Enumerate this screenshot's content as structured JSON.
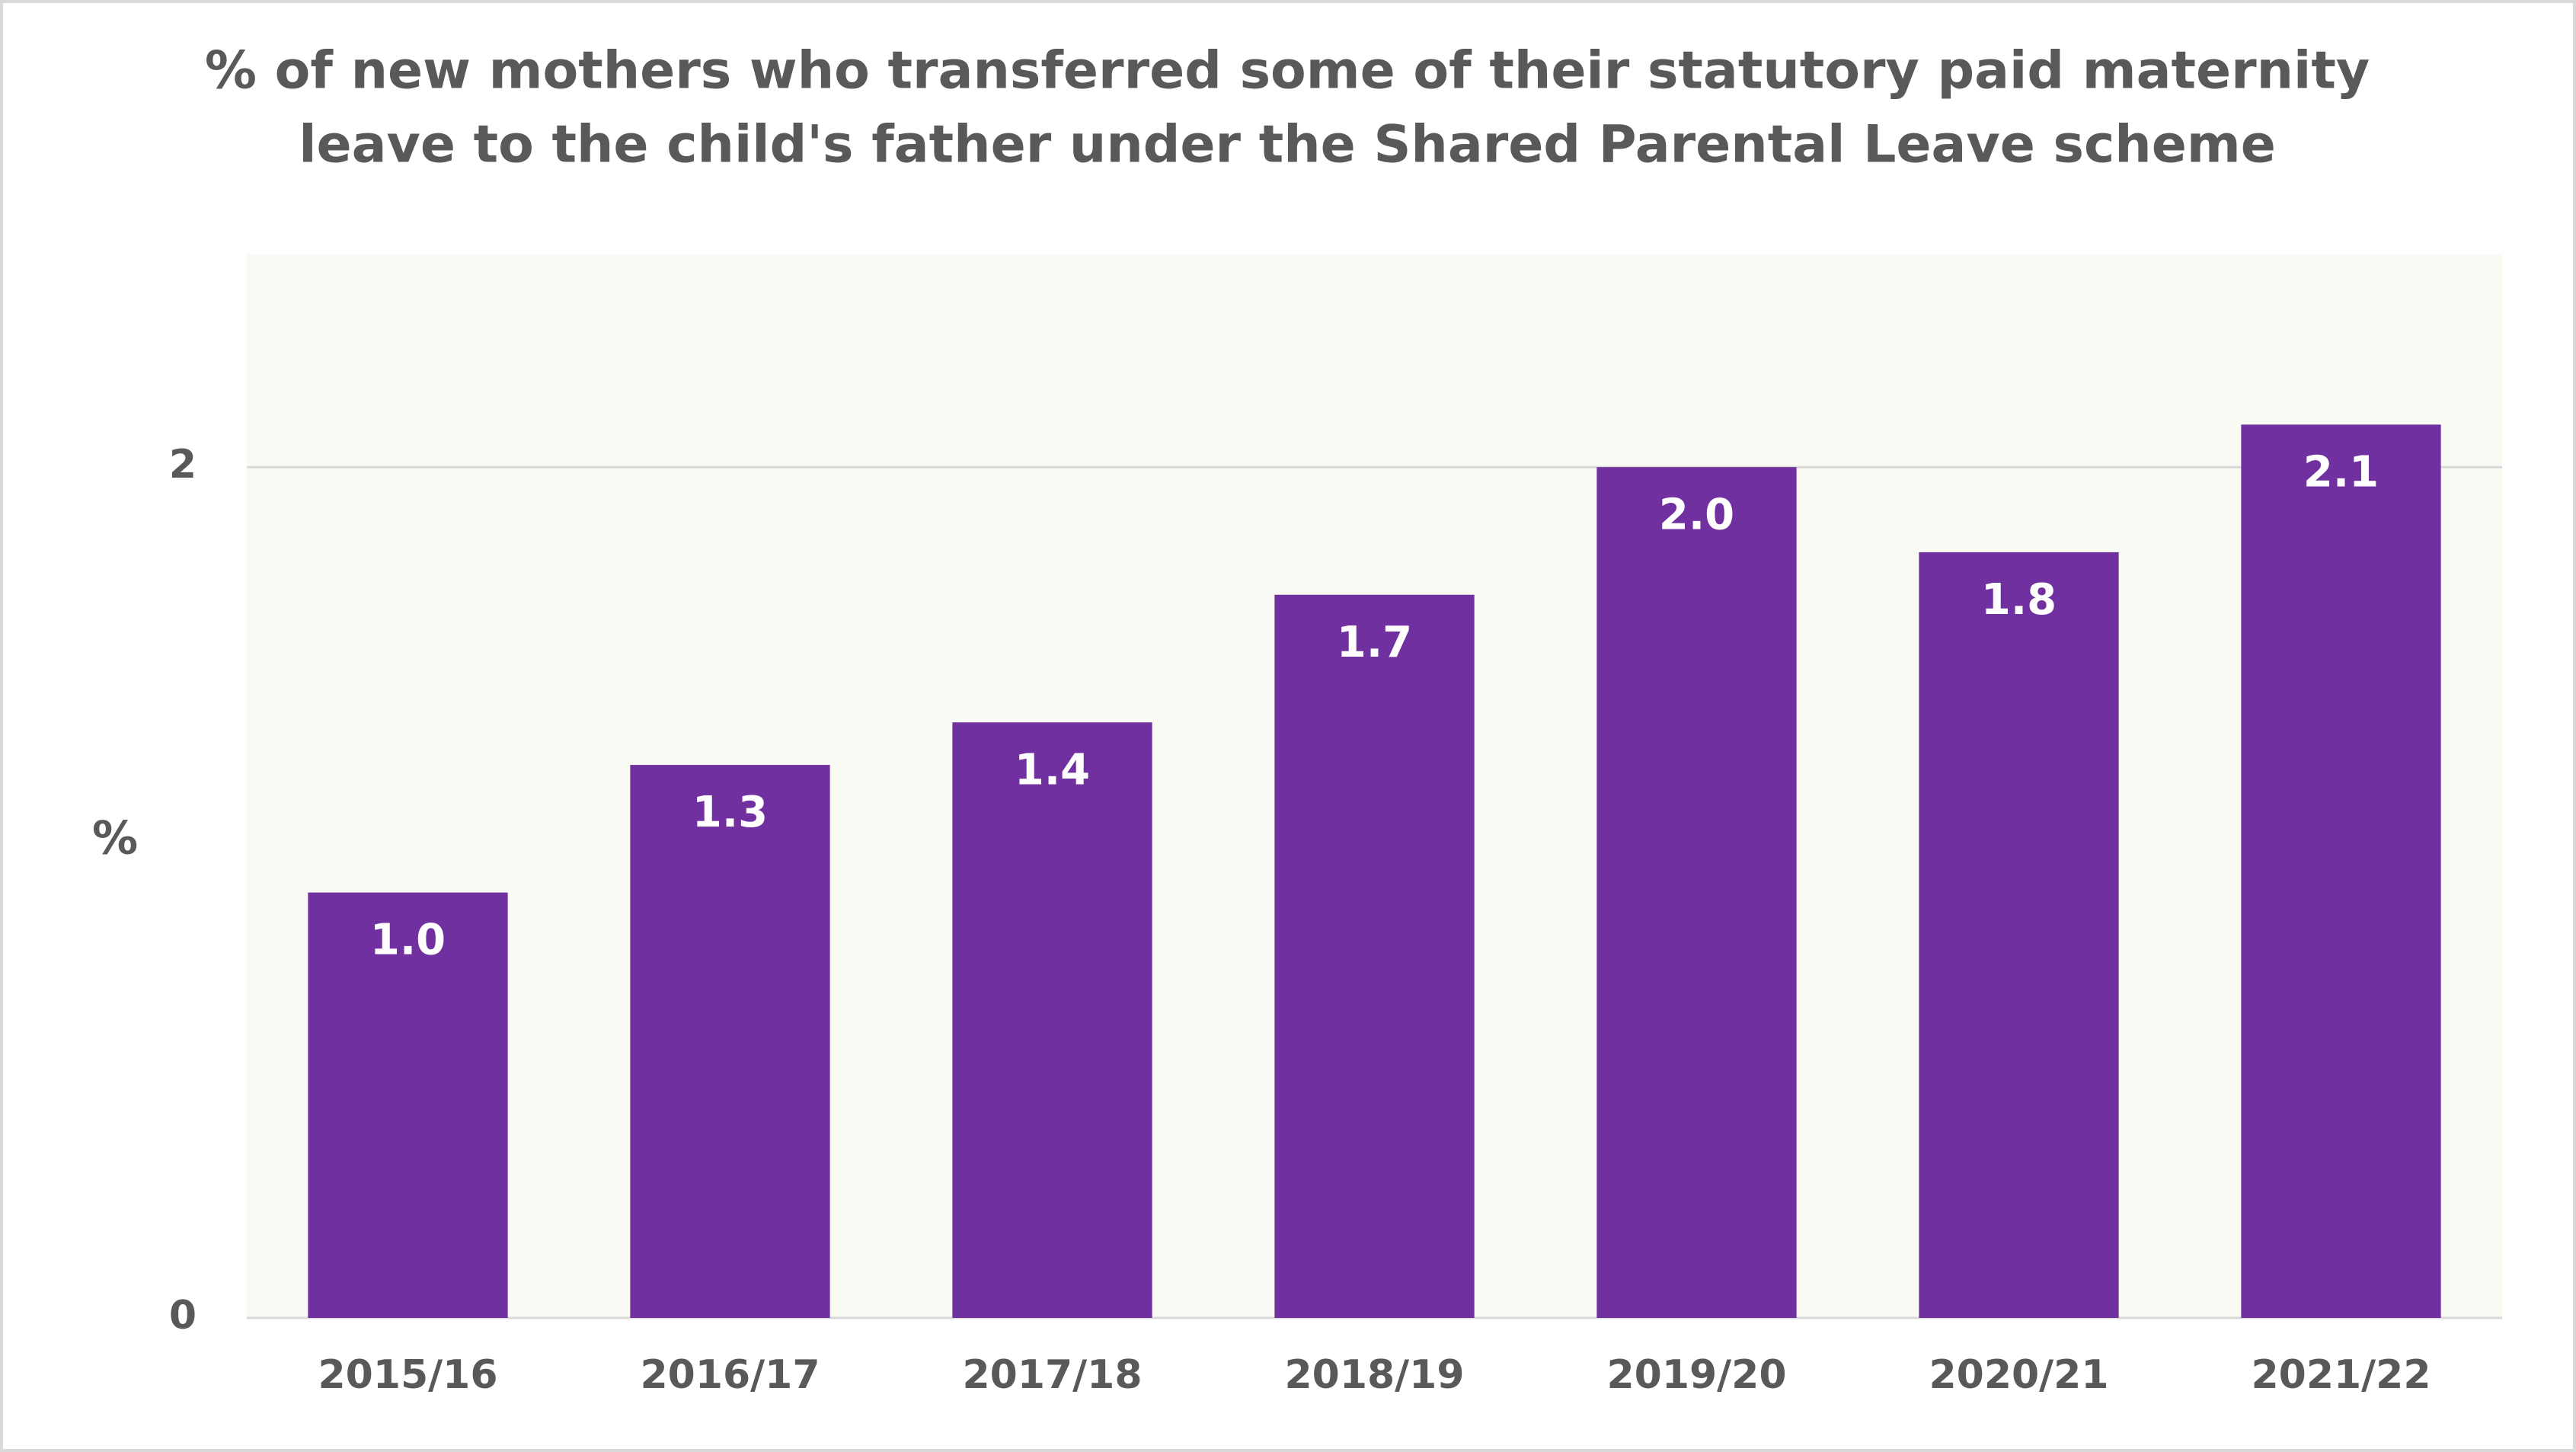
{
  "chart_data": {
    "type": "bar",
    "title": [
      "% of new mothers who transferred some of their statutory paid maternity",
      "leave to the child's father under the Shared Parental Leave scheme"
    ],
    "y_label": "%",
    "categories": [
      "2015/16",
      "2016/17",
      "2017/18",
      "2018/19",
      "2019/20",
      "2020/21",
      "2021/22"
    ],
    "values": [
      1.0,
      1.3,
      1.4,
      1.7,
      2.0,
      1.8,
      2.1
    ],
    "value_labels": [
      "1.0",
      "1.3",
      "1.4",
      "1.7",
      "2.0",
      "1.8",
      "2.1"
    ],
    "color": "#7030a0",
    "ylim": [
      0,
      2.5
    ],
    "yticks": [
      0,
      2
    ],
    "grid": true
  }
}
